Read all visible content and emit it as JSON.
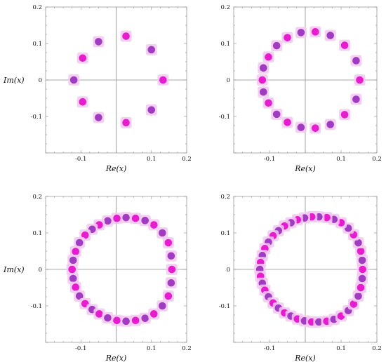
{
  "chart_data": [
    {
      "type": "scatter",
      "xlabel": "Re(x)",
      "ylabel": "Im(x)",
      "xlim": [
        -0.2,
        0.2
      ],
      "ylim": [
        -0.2,
        0.2
      ],
      "x_ticks": [
        -0.1,
        0.1,
        0.2
      ],
      "x_tick_labels": [
        "-0.1",
        "0.1",
        "0.2"
      ],
      "y_ticks": [
        0.2,
        0.1,
        0,
        -0.1
      ],
      "y_tick_labels": [
        "0.2",
        "0.1",
        "0",
        "-0.1"
      ],
      "grid": false,
      "point_colors": [
        "#e91ad0",
        "#a23bc4"
      ],
      "halo_color": "#f2c8f0",
      "points": [
        {
          "x": 0.133,
          "y": 0.0
        },
        {
          "x": 0.1,
          "y": 0.083
        },
        {
          "x": 0.028,
          "y": 0.12
        },
        {
          "x": -0.05,
          "y": 0.105
        },
        {
          "x": -0.095,
          "y": 0.06
        },
        {
          "x": -0.12,
          "y": 0.0
        },
        {
          "x": -0.095,
          "y": -0.06
        },
        {
          "x": -0.05,
          "y": -0.103
        },
        {
          "x": 0.028,
          "y": -0.117
        },
        {
          "x": 0.1,
          "y": -0.082
        }
      ]
    },
    {
      "type": "scatter",
      "xlabel": "Re(x)",
      "ylabel": "",
      "xlim": [
        -0.2,
        0.2
      ],
      "ylim": [
        -0.2,
        0.2
      ],
      "x_ticks": [
        -0.1,
        0.1,
        0.2
      ],
      "x_tick_labels": [
        "-0.1",
        "0.1",
        "0.2"
      ],
      "y_ticks": [
        0.2,
        0.1,
        0,
        -0.1
      ],
      "y_tick_labels": [
        "0.2",
        "0.1",
        "0",
        "-0.1"
      ],
      "grid": false,
      "point_colors": [
        "#e91ad0",
        "#a23bc4"
      ],
      "halo_color": "#f2c8f0",
      "points": [
        {
          "x": 0.152,
          "y": 0.0
        },
        {
          "x": 0.142,
          "y": 0.053
        },
        {
          "x": 0.11,
          "y": 0.095
        },
        {
          "x": 0.07,
          "y": 0.122
        },
        {
          "x": 0.028,
          "y": 0.132
        },
        {
          "x": -0.012,
          "y": 0.13
        },
        {
          "x": -0.05,
          "y": 0.116
        },
        {
          "x": -0.08,
          "y": 0.094
        },
        {
          "x": -0.103,
          "y": 0.063
        },
        {
          "x": -0.117,
          "y": 0.033
        },
        {
          "x": -0.12,
          "y": 0.0
        },
        {
          "x": -0.117,
          "y": -0.033
        },
        {
          "x": -0.103,
          "y": -0.063
        },
        {
          "x": -0.08,
          "y": -0.094
        },
        {
          "x": -0.05,
          "y": -0.116
        },
        {
          "x": -0.012,
          "y": -0.13
        },
        {
          "x": 0.028,
          "y": -0.132
        },
        {
          "x": 0.07,
          "y": -0.122
        },
        {
          "x": 0.11,
          "y": -0.095
        },
        {
          "x": 0.142,
          "y": -0.053
        }
      ]
    },
    {
      "type": "scatter",
      "xlabel": "Re(x)",
      "ylabel": "Im(x)",
      "xlim": [
        -0.2,
        0.2
      ],
      "ylim": [
        -0.2,
        0.2
      ],
      "x_ticks": [
        -0.1,
        0.1,
        0.2
      ],
      "x_tick_labels": [
        "-0.1",
        "0.1",
        "0.2"
      ],
      "y_ticks": [
        0.2,
        0.1,
        0,
        -0.1
      ],
      "y_tick_labels": [
        "0.2",
        "0.1",
        "0",
        "-0.1"
      ],
      "grid": false,
      "point_colors": [
        "#e91ad0",
        "#a23bc4"
      ],
      "halo_color": "#f2c8f0",
      "points": [
        {
          "x": 0.158,
          "y": 0.0
        },
        {
          "x": 0.156,
          "y": 0.037
        },
        {
          "x": 0.148,
          "y": 0.073
        },
        {
          "x": 0.131,
          "y": 0.1
        },
        {
          "x": 0.107,
          "y": 0.122
        },
        {
          "x": 0.082,
          "y": 0.134
        },
        {
          "x": 0.055,
          "y": 0.14
        },
        {
          "x": 0.028,
          "y": 0.142
        },
        {
          "x": 0.002,
          "y": 0.14
        },
        {
          "x": -0.024,
          "y": 0.133
        },
        {
          "x": -0.048,
          "y": 0.122
        },
        {
          "x": -0.068,
          "y": 0.11
        },
        {
          "x": -0.088,
          "y": 0.094
        },
        {
          "x": -0.104,
          "y": 0.073
        },
        {
          "x": -0.115,
          "y": 0.049
        },
        {
          "x": -0.122,
          "y": 0.025
        },
        {
          "x": -0.125,
          "y": 0.0
        },
        {
          "x": -0.122,
          "y": -0.025
        },
        {
          "x": -0.115,
          "y": -0.049
        },
        {
          "x": -0.104,
          "y": -0.073
        },
        {
          "x": -0.088,
          "y": -0.094
        },
        {
          "x": -0.068,
          "y": -0.11
        },
        {
          "x": -0.048,
          "y": -0.122
        },
        {
          "x": -0.024,
          "y": -0.133
        },
        {
          "x": 0.002,
          "y": -0.14
        },
        {
          "x": 0.028,
          "y": -0.142
        },
        {
          "x": 0.055,
          "y": -0.14
        },
        {
          "x": 0.082,
          "y": -0.134
        },
        {
          "x": 0.107,
          "y": -0.122
        },
        {
          "x": 0.131,
          "y": -0.1
        },
        {
          "x": 0.148,
          "y": -0.073
        },
        {
          "x": 0.156,
          "y": -0.037
        }
      ]
    },
    {
      "type": "scatter",
      "xlabel": "Re(x)",
      "ylabel": "",
      "xlim": [
        -0.2,
        0.2
      ],
      "ylim": [
        -0.2,
        0.2
      ],
      "x_ticks": [
        -0.1,
        0.1,
        0.2
      ],
      "x_tick_labels": [
        "-0.1",
        "0.1",
        "0.2"
      ],
      "y_ticks": [
        0.2,
        0.1,
        0,
        -0.1
      ],
      "y_tick_labels": [
        "0.2",
        "0.1",
        "0",
        "-0.1"
      ],
      "grid": false,
      "point_colors": [
        "#e91ad0",
        "#a23bc4"
      ],
      "halo_color": "#f2c8f0",
      "points": [
        {
          "x": 0.16,
          "y": 0.0
        },
        {
          "x": 0.159,
          "y": 0.025
        },
        {
          "x": 0.155,
          "y": 0.05
        },
        {
          "x": 0.148,
          "y": 0.073
        },
        {
          "x": 0.135,
          "y": 0.095
        },
        {
          "x": 0.12,
          "y": 0.113
        },
        {
          "x": 0.1,
          "y": 0.128
        },
        {
          "x": 0.08,
          "y": 0.137
        },
        {
          "x": 0.06,
          "y": 0.142
        },
        {
          "x": 0.038,
          "y": 0.144
        },
        {
          "x": 0.018,
          "y": 0.144
        },
        {
          "x": -0.002,
          "y": 0.141
        },
        {
          "x": -0.022,
          "y": 0.136
        },
        {
          "x": -0.04,
          "y": 0.128
        },
        {
          "x": -0.058,
          "y": 0.119
        },
        {
          "x": -0.075,
          "y": 0.106
        },
        {
          "x": -0.09,
          "y": 0.092
        },
        {
          "x": -0.103,
          "y": 0.075
        },
        {
          "x": -0.113,
          "y": 0.057
        },
        {
          "x": -0.12,
          "y": 0.038
        },
        {
          "x": -0.125,
          "y": 0.019
        },
        {
          "x": -0.127,
          "y": 0.0
        },
        {
          "x": -0.125,
          "y": -0.019
        },
        {
          "x": -0.12,
          "y": -0.038
        },
        {
          "x": -0.113,
          "y": -0.057
        },
        {
          "x": -0.103,
          "y": -0.075
        },
        {
          "x": -0.09,
          "y": -0.092
        },
        {
          "x": -0.075,
          "y": -0.106
        },
        {
          "x": -0.058,
          "y": -0.119
        },
        {
          "x": -0.04,
          "y": -0.128
        },
        {
          "x": -0.022,
          "y": -0.136
        },
        {
          "x": -0.002,
          "y": -0.141
        },
        {
          "x": 0.018,
          "y": -0.144
        },
        {
          "x": 0.038,
          "y": -0.144
        },
        {
          "x": 0.06,
          "y": -0.142
        },
        {
          "x": 0.08,
          "y": -0.137
        },
        {
          "x": 0.1,
          "y": -0.128
        },
        {
          "x": 0.12,
          "y": -0.113
        },
        {
          "x": 0.135,
          "y": -0.095
        },
        {
          "x": 0.148,
          "y": -0.073
        },
        {
          "x": 0.155,
          "y": -0.05
        },
        {
          "x": 0.159,
          "y": -0.025
        }
      ]
    }
  ]
}
